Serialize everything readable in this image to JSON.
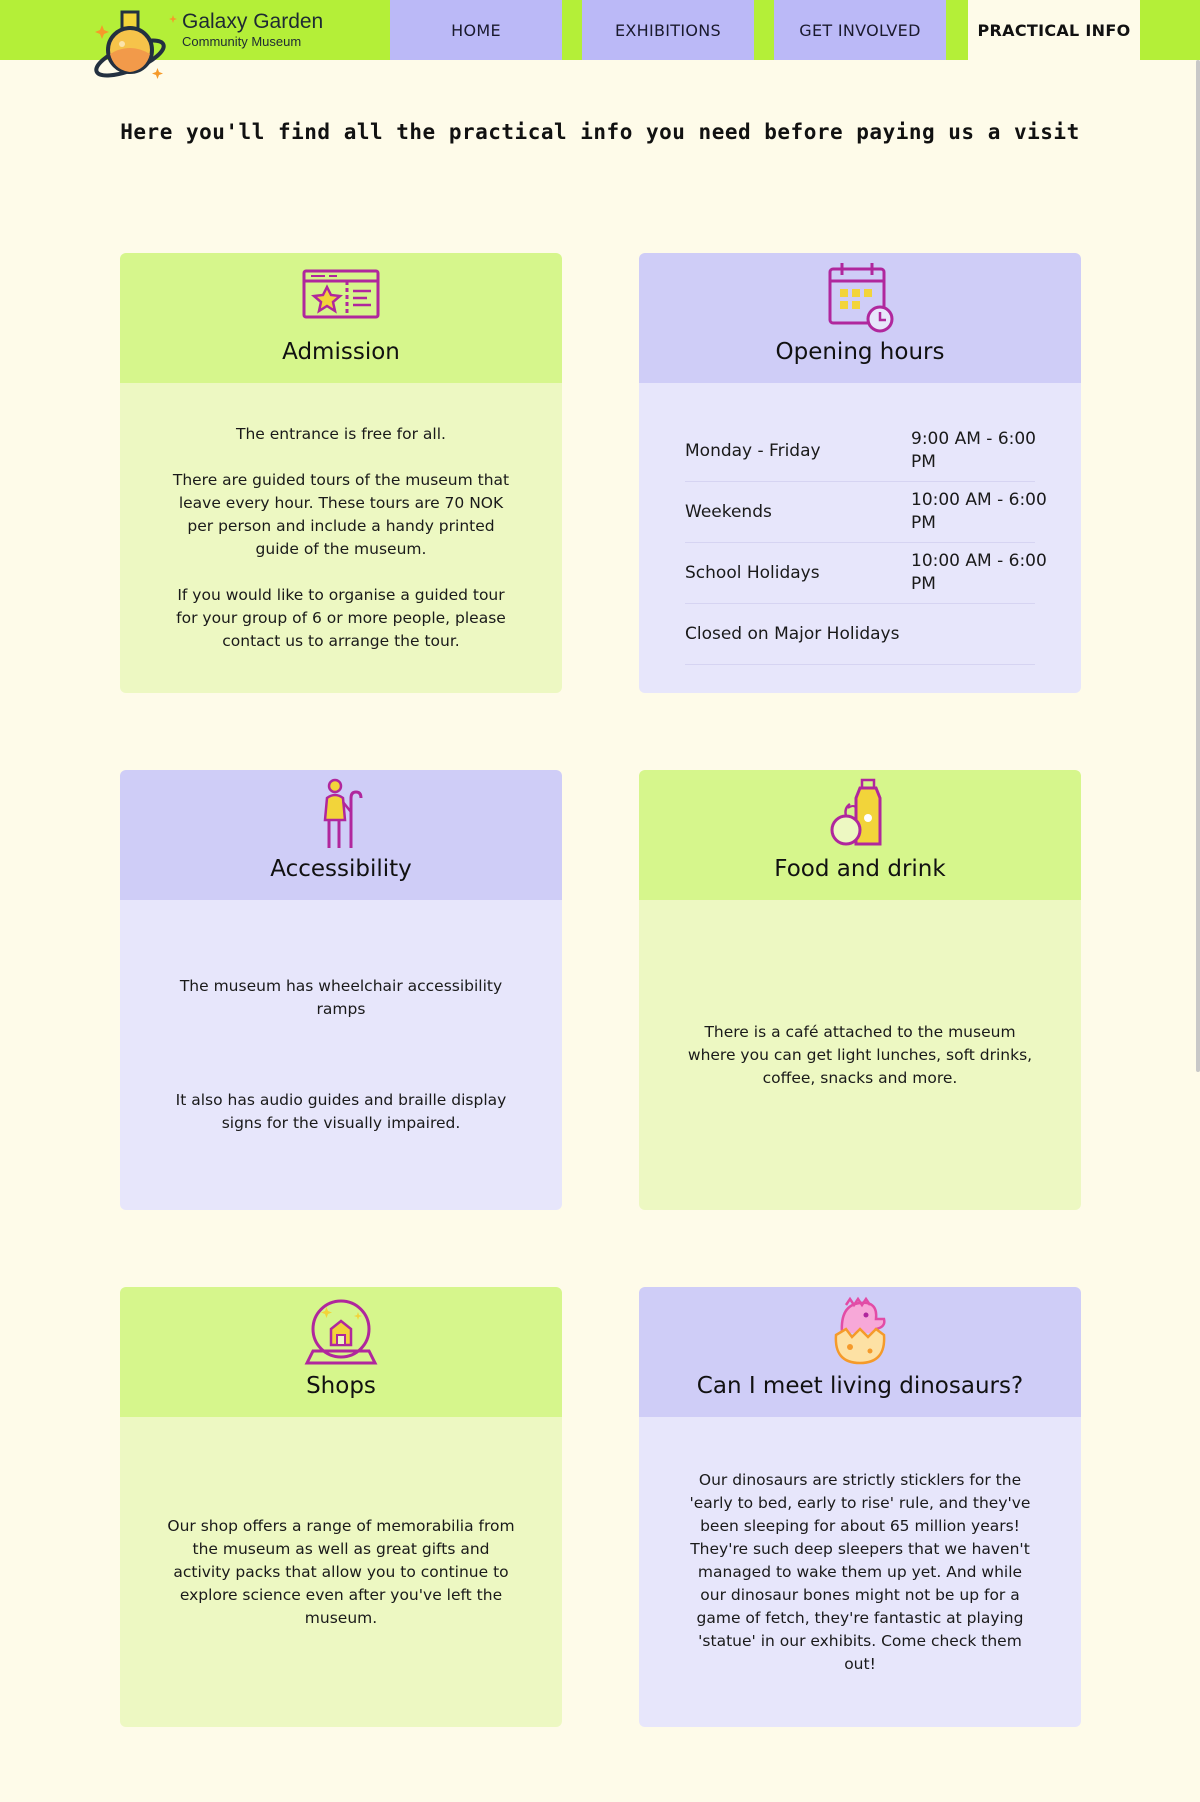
{
  "header": {
    "brand_title": "Galaxy Garden",
    "brand_subtitle": "Community Museum",
    "nav": [
      "HOME",
      "EXHIBITIONS",
      "GET INVOLVED",
      "PRACTICAL INFO"
    ],
    "active_nav": "PRACTICAL INFO"
  },
  "intro": "Here you'll find all the practical info you need before paying us a visit",
  "cards": {
    "admission": {
      "title": "Admission",
      "paragraphs": [
        "The entrance is free for all.",
        "There are guided tours of the museum that leave every hour. These tours are 70 NOK per person and include a handy printed guide of the museum.",
        "If you would like to organise a guided tour for your group of 6 or more people, please contact us to arrange the tour."
      ]
    },
    "opening_hours": {
      "title": "Opening hours",
      "rows": [
        {
          "day": "Monday - Friday",
          "time": "9:00 AM - 6:00 PM"
        },
        {
          "day": "Weekends",
          "time": "10:00 AM - 6:00 PM"
        },
        {
          "day": "School Holidays",
          "time": "10:00 AM - 6:00 PM"
        },
        {
          "day": "Closed on Major Holidays",
          "time": ""
        }
      ]
    },
    "accessibility": {
      "title": "Accessibility",
      "paragraphs": [
        "The museum has wheelchair accessibility ramps",
        "It also has audio guides and braille display signs for the visually impaired."
      ]
    },
    "food": {
      "title": "Food and drink",
      "paragraphs": [
        "There is a café attached to the museum where you can get light lunches, soft drinks, coffee, snacks and more."
      ]
    },
    "shops": {
      "title": "Shops",
      "paragraphs": [
        "Our shop offers a range of memorabilia from the museum as well as great gifts and activity packs that allow you to continue to explore science even after you've left the museum."
      ]
    },
    "dinosaurs": {
      "title": "Can I meet living dinosaurs?",
      "paragraphs": [
        "Our dinosaurs are strictly sticklers for the 'early to bed, early to rise' rule, and they've been sleeping for about 65 million years! They're such deep sleepers that we haven't managed to wake them up yet. And while our dinosaur bones might not be up for a game of fetch, they're fantastic at playing 'statue' in our exhibits. Come check them out!"
      ]
    }
  },
  "icons": [
    "planet-flask-icon",
    "ticket-icon",
    "calendar-clock-icon",
    "elderly-person-icon",
    "food-drink-icon",
    "snow-globe-icon",
    "dinosaur-egg-icon"
  ],
  "colors": {
    "header_bar": "#b4ef38",
    "nav_bg": "#bbb9f7",
    "page_bg": "#fefbe9",
    "green_head": "#d6f68c",
    "green_body": "#edf8c2",
    "purple_head": "#cfcdf7",
    "purple_body": "#e7e6fb",
    "icon_magenta": "#b0279d",
    "icon_yellow": "#f2d43a"
  }
}
